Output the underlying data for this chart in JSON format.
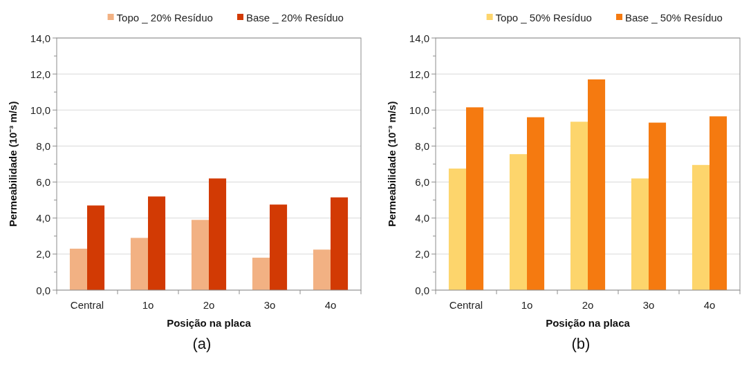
{
  "chart_data": [
    {
      "type": "bar",
      "categories": [
        "Central",
        "1o",
        "2o",
        "3o",
        "4o"
      ],
      "xlabel": "Posição na placa",
      "ylabel": "Permeabilidade  (10⁻³ m/s)",
      "legend": "top",
      "grid": "y",
      "series": [
        {
          "name": "Topo _ 20% Resíduo",
          "color": "#f2b183",
          "values": [
            2.3,
            2.9,
            3.9,
            1.8,
            2.25
          ]
        },
        {
          "name": "Base _ 20% Resíduo",
          "color": "#d23a04",
          "values": [
            4.7,
            5.2,
            6.2,
            4.75,
            5.15
          ]
        }
      ],
      "ylim": [
        0,
        14
      ],
      "yticks": [
        {
          "value": 0,
          "label": "0,0"
        },
        {
          "value": 1,
          "label": null
        },
        {
          "value": 2,
          "label": "2,0"
        },
        {
          "value": 3,
          "label": null
        },
        {
          "value": 4,
          "label": "4,0"
        },
        {
          "value": 5,
          "label": null
        },
        {
          "value": 6,
          "label": "6,0"
        },
        {
          "value": 7,
          "label": null
        },
        {
          "value": 8,
          "label": "8,0"
        },
        {
          "value": 9,
          "label": null
        },
        {
          "value": 10,
          "label": "10,0"
        },
        {
          "value": 11,
          "label": null
        },
        {
          "value": 12,
          "label": "12,0"
        },
        {
          "value": 13,
          "label": null
        },
        {
          "value": 14,
          "label": "14,0"
        }
      ],
      "annotations": [
        "(a)"
      ]
    },
    {
      "type": "bar",
      "categories": [
        "Central",
        "1o",
        "2o",
        "3o",
        "4o"
      ],
      "xlabel": "Posição na placa",
      "ylabel": "Permeabilidade  (10⁻³ m/s)",
      "legend": "top",
      "grid": "y",
      "series": [
        {
          "name": "Topo _ 50% Resíduo",
          "color": "#fdd56c",
          "values": [
            6.75,
            7.55,
            9.35,
            6.2,
            6.95
          ]
        },
        {
          "name": "Base _ 50% Resíduo",
          "color": "#f57a10",
          "values": [
            10.15,
            9.6,
            11.7,
            9.3,
            9.65
          ]
        }
      ],
      "ylim": [
        0,
        14
      ],
      "yticks": [
        {
          "value": 0,
          "label": "0,0"
        },
        {
          "value": 1,
          "label": null
        },
        {
          "value": 2,
          "label": "2,0"
        },
        {
          "value": 3,
          "label": null
        },
        {
          "value": 4,
          "label": "4,0"
        },
        {
          "value": 5,
          "label": null
        },
        {
          "value": 6,
          "label": "6,0"
        },
        {
          "value": 7,
          "label": null
        },
        {
          "value": 8,
          "label": "8,0"
        },
        {
          "value": 9,
          "label": null
        },
        {
          "value": 10,
          "label": "10,0"
        },
        {
          "value": 11,
          "label": null
        },
        {
          "value": 12,
          "label": "12,0"
        },
        {
          "value": 13,
          "label": null
        },
        {
          "value": 14,
          "label": "14,0"
        }
      ],
      "annotations": [
        "(b)"
      ]
    }
  ]
}
